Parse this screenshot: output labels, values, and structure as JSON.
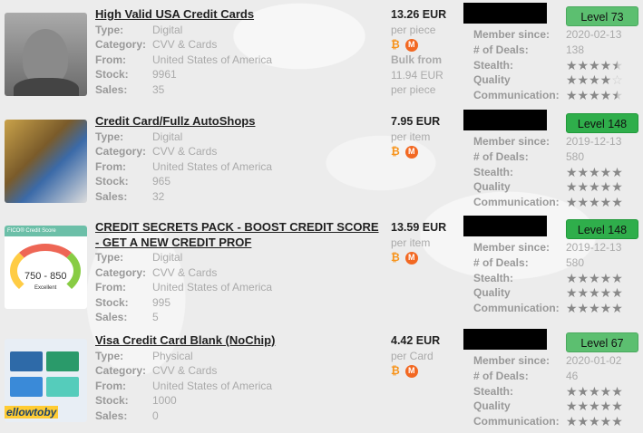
{
  "listings": [
    {
      "title": "High Valid USA Credit Cards",
      "type": "Digital",
      "category": "CVV & Cards",
      "from": "United States of America",
      "stock": "9961",
      "sales": "35",
      "price": "13.26 EUR",
      "unit": "per piece",
      "bulk_label": "Bulk from",
      "bulk_price": "11.94 EUR",
      "bulk_unit": "per piece",
      "level": "Level 73",
      "member_since": "2020-02-13",
      "deals": "138",
      "stealth": 4.5,
      "quality": 4,
      "communication": 4.5
    },
    {
      "title": "Credit Card/Fullz AutoShops",
      "type": "Digital",
      "category": "CVV & Cards",
      "from": "United States of America",
      "stock": "965",
      "sales": "32",
      "price": "7.95 EUR",
      "unit": "per item",
      "level": "Level 148",
      "member_since": "2019-12-13",
      "deals": "580",
      "stealth": 5,
      "quality": 5,
      "communication": 5
    },
    {
      "title": "CREDIT SECRETS PACK - BOOST CREDIT SCORE - GET A NEW CREDIT PROF",
      "type": "Digital",
      "category": "CVV & Cards",
      "from": "United States of America",
      "stock": "995",
      "sales": "5",
      "price": "13.59 EUR",
      "unit": "per item",
      "level": "Level 148",
      "member_since": "2019-12-13",
      "deals": "580",
      "stealth": 5,
      "quality": 5,
      "communication": 5,
      "thumb_text": {
        "brand": "FICO® Credit Score",
        "range": "750 - 850",
        "rating": "Excellent"
      }
    },
    {
      "title": "Visa Credit Card Blank (NoChip)",
      "type": "Physical",
      "category": "CVV & Cards",
      "from": "United States of America",
      "stock": "1000",
      "sales": "0",
      "price": "4.42 EUR",
      "unit": "per Card",
      "level": "Level 67",
      "member_since": "2020-01-02",
      "deals": "46",
      "stealth": 5,
      "quality": 5,
      "communication": 5,
      "thumb_text": {
        "brand": "ellowtoby"
      }
    }
  ],
  "labels": {
    "type": "Type:",
    "category": "Category:",
    "from": "From:",
    "stock": "Stock:",
    "sales": "Sales:",
    "member_since": "Member since:",
    "deals": "# of Deals:",
    "stealth": "Stealth:",
    "quality": "Quality",
    "communication": "Communication:"
  },
  "icons": {
    "btc": "₿",
    "xmr": "M"
  },
  "colors": {
    "level_dark": "#2fae4b",
    "level_light": "#5cbf70",
    "bitcoin": "#f7931a",
    "monero": "#f26822"
  }
}
